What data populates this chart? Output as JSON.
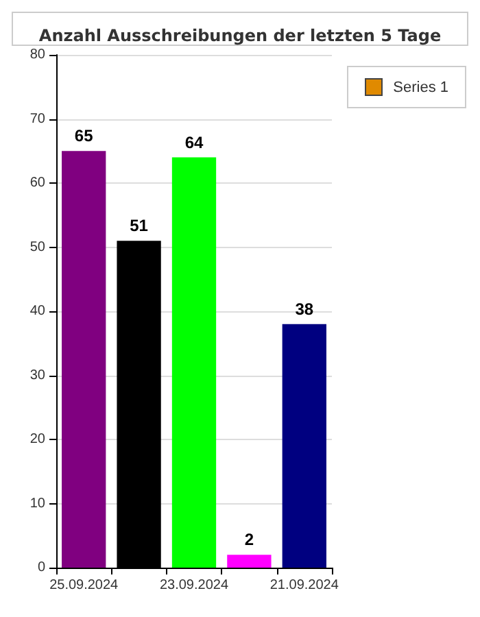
{
  "chart_data": {
    "type": "bar",
    "title": "Anzahl Ausschreibungen der letzten 5 Tage",
    "categories": [
      "25.09.2024",
      null,
      "23.09.2024",
      null,
      "21.09.2024"
    ],
    "series": [
      {
        "name": "Series 1",
        "color": "#e08a00",
        "colors": [
          "#800080",
          "#000000",
          "#00ff00",
          "#ff00ff",
          "#000080"
        ],
        "values": [
          65,
          51,
          64,
          2,
          38
        ]
      }
    ],
    "ylim": [
      0,
      80
    ],
    "yticks": [
      0,
      10,
      20,
      30,
      40,
      50,
      60,
      70,
      80
    ],
    "grid": "y",
    "legend": "top right",
    "data_labels": true
  }
}
